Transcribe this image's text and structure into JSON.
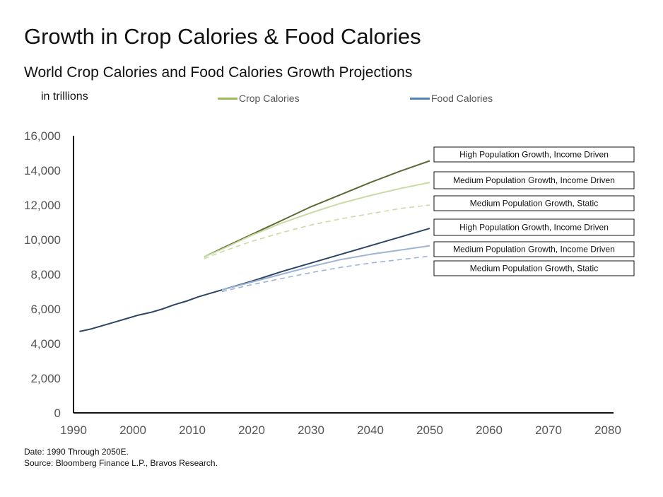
{
  "header": {
    "title": "Growth in Crop Calories & Food Calories",
    "subtitle": "World Crop Calories and Food Calories Growth Projections",
    "unit": "in trillions"
  },
  "legend": [
    {
      "label": "Crop Calories",
      "color": "#9bbb59"
    },
    {
      "label": "Food Calories",
      "color": "#4f81bd"
    }
  ],
  "footer": {
    "date_note": "Date: 1990 Through 2050E.",
    "source": "Source: Bloomberg Finance L.P., Bravos Research."
  },
  "chart_data": {
    "type": "line",
    "xlim": [
      1990,
      2080
    ],
    "ylim": [
      0,
      16000
    ],
    "x_ticks": [
      "1990",
      "2000",
      "2010",
      "2020",
      "2030",
      "2040",
      "2050",
      "2060",
      "2070",
      "2080"
    ],
    "y_ticks": [
      "0",
      "2,000",
      "4,000",
      "6,000",
      "8,000",
      "10,000",
      "12,000",
      "14,000",
      "16,000"
    ],
    "grid": false,
    "legend_position": "top",
    "series": [
      {
        "group": "Food Calories",
        "style": "solid",
        "color": "#2e4566",
        "x": [
          1991,
          1993,
          1995,
          1997,
          1999,
          2001,
          2003,
          2005,
          2007,
          2009,
          2011,
          2013,
          2015
        ],
        "y": [
          4700,
          4850,
          5050,
          5250,
          5450,
          5650,
          5800,
          6000,
          6250,
          6450,
          6700,
          6900,
          7100
        ]
      },
      {
        "group": "Food Calories",
        "style": "solid",
        "color": "#2e4566",
        "x": [
          2015,
          2020,
          2025,
          2030,
          2035,
          2040,
          2045,
          2050
        ],
        "y": [
          7100,
          7600,
          8150,
          8650,
          9150,
          9650,
          10150,
          10650
        ]
      },
      {
        "group": "Food Calories",
        "style": "solid",
        "color": "#9db4d6",
        "x": [
          2015,
          2020,
          2025,
          2030,
          2035,
          2040,
          2045,
          2050
        ],
        "y": [
          7100,
          7550,
          8000,
          8450,
          8850,
          9150,
          9400,
          9650
        ]
      },
      {
        "group": "Food Calories",
        "style": "dashed",
        "color": "#9db4d6",
        "x": [
          2015,
          2020,
          2025,
          2030,
          2035,
          2040,
          2045,
          2050
        ],
        "y": [
          7000,
          7400,
          7750,
          8100,
          8400,
          8650,
          8850,
          9050
        ]
      },
      {
        "group": "Crop Calories",
        "style": "solid",
        "color": "#5b6b35",
        "x": [
          2012,
          2015,
          2020,
          2025,
          2030,
          2035,
          2040,
          2045,
          2050
        ],
        "y": [
          9000,
          9500,
          10300,
          11100,
          11900,
          12600,
          13300,
          13950,
          14550
        ]
      },
      {
        "group": "Crop Calories",
        "style": "solid",
        "color": "#c9dba3",
        "x": [
          2012,
          2015,
          2020,
          2025,
          2030,
          2035,
          2040,
          2045,
          2050
        ],
        "y": [
          9000,
          9450,
          10250,
          10950,
          11550,
          12100,
          12550,
          12950,
          13300
        ]
      },
      {
        "group": "Crop Calories",
        "style": "dashed",
        "color": "#c9dba3",
        "x": [
          2012,
          2015,
          2020,
          2025,
          2030,
          2035,
          2040,
          2045,
          2050
        ],
        "y": [
          8900,
          9300,
          9900,
          10400,
          10850,
          11200,
          11500,
          11800,
          12000
        ]
      }
    ],
    "annotations": [
      "High Population Growth, Income Driven",
      "Medium Population Growth, Income Driven",
      "Medium Population Growth, Static",
      "High Population Growth, Income Driven",
      "Medium Population Growth, Income Driven",
      "Medium Population Growth, Static"
    ]
  }
}
